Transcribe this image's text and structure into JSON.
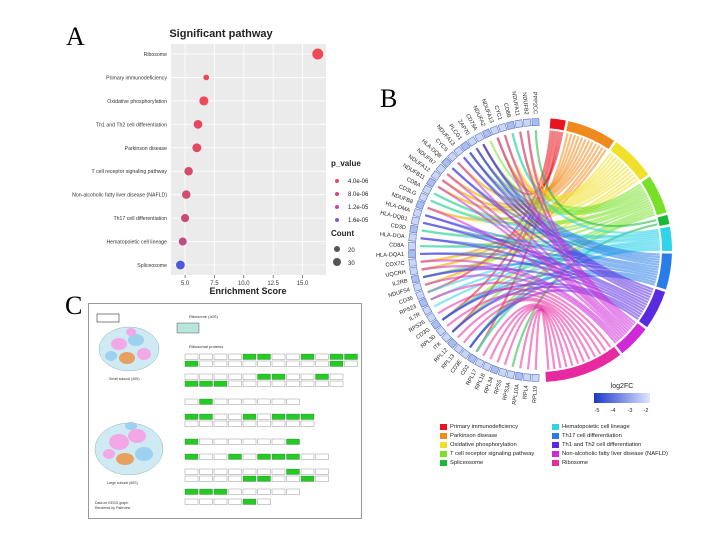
{
  "panels": {
    "a": "A",
    "b": "B",
    "c": "C"
  },
  "chart_data": {
    "type": "scatter",
    "title": "Significant pathway",
    "xlabel": "Enrichment Score",
    "ylabel": "",
    "xlim": [
      3.8,
      17.0
    ],
    "xticks": [
      5.0,
      7.5,
      10.0,
      12.5,
      15.0
    ],
    "xtick_labels": [
      "5.0",
      "7.5",
      "10.0",
      "12.5",
      "15.0"
    ],
    "categories": [
      "Ribosome",
      "Primary immunodeficiency",
      "Oxidative phosphorylation",
      "Th1 and Th2 cell differentiation",
      "Parkinson disease",
      "T cell receptor signaling pathway",
      "Non-alcoholic fatty liver disease (NAFLD)",
      "Th17 cell differentiation",
      "Hematopoietic cell lineage",
      "Spliceosome"
    ],
    "x": [
      16.3,
      6.8,
      6.6,
      6.1,
      6.0,
      5.3,
      5.1,
      5.0,
      4.8,
      4.6
    ],
    "p_value": [
      2e-07,
      3e-07,
      6e-07,
      1.5e-06,
      1.8e-06,
      3e-06,
      4e-06,
      5e-06,
      6e-06,
      1.9e-05
    ],
    "count": [
      40,
      6,
      24,
      22,
      23,
      20,
      20,
      18,
      17,
      22
    ],
    "legend_pvalue": {
      "title": "p_value",
      "labels": [
        "4.0e-06",
        "8.0e-06",
        "1.2e-05",
        "1.6e-05"
      ],
      "colors": [
        "#ee4466",
        "#dd447a",
        "#c04aa8",
        "#8a55d8"
      ]
    },
    "legend_count": {
      "title": "Count",
      "labels": [
        "20",
        "30"
      ]
    },
    "grid": true,
    "background": "#ebebeb"
  },
  "chord": {
    "genes": [
      "PPP2CC",
      "NDUFB2",
      "NDUFA11",
      "CD8B",
      "CYC1",
      "NDUFA13",
      "NDUFA2",
      "CD79A",
      "ZAP70",
      "PLCG1",
      "NDUFA13",
      "CYCS",
      "HLA-DQB",
      "NDUFB7",
      "NDUFA12",
      "NDUFB11",
      "CD8A",
      "CD3LG",
      "NDUFB8",
      "HLA-DMA",
      "HLA-DQB1",
      "CD3D",
      "HLA-DOA",
      "CD8A",
      "HLA-DQA1",
      "COX7C",
      "UQCRH",
      "IL2RB",
      "NDUFS4",
      "CD36",
      "RPS23",
      "IL7R",
      "RPS26",
      "CD3G",
      "RPL30",
      "ITK",
      "RPL12",
      "RPL13",
      "CD3E",
      "CD2",
      "RPL17",
      "RPL18",
      "RPL34",
      "RPS5",
      "RPS3A",
      "RPL10A",
      "RPL4",
      "RPL19"
    ],
    "legend_title": "log2FC",
    "legend_ticks": [
      "-5",
      "-4",
      "-3",
      "-2"
    ],
    "pathways": [
      {
        "name": "Primary immunodeficiency",
        "color": "#e8141e"
      },
      {
        "name": "Hematopoietic cell lineage",
        "color": "#30d4e8"
      },
      {
        "name": "Parkinson disease",
        "color": "#f08a1c"
      },
      {
        "name": "Th17 cell differentiation",
        "color": "#2a7de8"
      },
      {
        "name": "Oxidative phosphorylation",
        "color": "#f0e02a"
      },
      {
        "name": "Th1 and Th2 cell differentiation",
        "color": "#5a2ae0"
      },
      {
        "name": "T cell receptor signaling pathway",
        "color": "#78e02a"
      },
      {
        "name": "Non-alcoholic fatty liver disease (NAFLD)",
        "color": "#d02ad8"
      },
      {
        "name": "Spliceosome",
        "color": "#18b838"
      },
      {
        "name": "Ribosome",
        "color": "#e82aa0"
      }
    ]
  },
  "kegg": {
    "title": "Ribosome",
    "left_label_top": "Eukaryotic Ribosome",
    "left_caption": "Small subunit (40S)",
    "left_caption2": "Large subunit (60S)",
    "credit_1": "Data on KEGG graph",
    "credit_2": "Rendered by Pathview",
    "box_top": "Ribosome (40S)",
    "box_mid": "Ribosomal proteins"
  }
}
